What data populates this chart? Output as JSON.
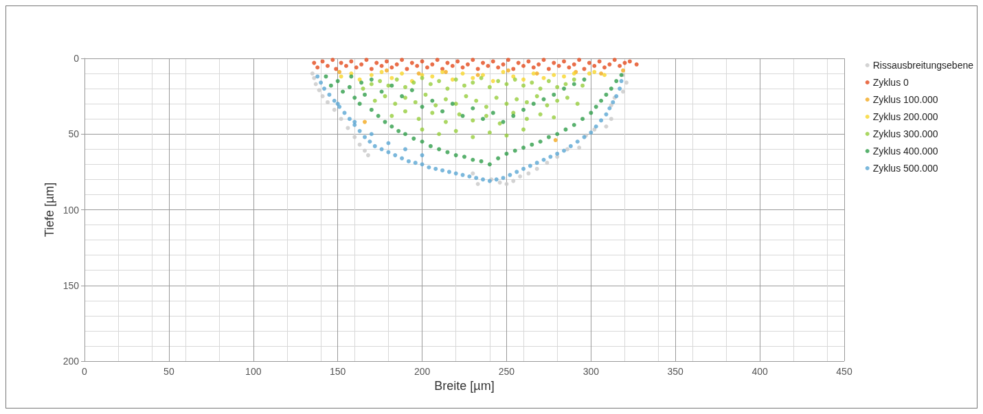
{
  "chart_data": {
    "type": "scatter",
    "xlabel": "Breite [µm]",
    "ylabel": "Tiefe [µm]",
    "xlim": [
      0,
      450
    ],
    "xticks": [
      0,
      50,
      100,
      150,
      200,
      250,
      300,
      350,
      400,
      450
    ],
    "ylim": [
      200,
      0
    ],
    "yticks": [
      0,
      50,
      100,
      150,
      200
    ],
    "grid": true,
    "legend": "top right",
    "marker": "circle",
    "series": [
      {
        "name": "Rissausbreitungsebene",
        "color": "#c8c8c8",
        "x": [
          135,
          136,
          137,
          139,
          141,
          144,
          148,
          152,
          156,
          160,
          163,
          166,
          168,
          230,
          233,
          241,
          246,
          250,
          254,
          258,
          263,
          268,
          274,
          280,
          286,
          293,
          297,
          302,
          309,
          312,
          312,
          314,
          319,
          321,
          319
        ],
        "values": [
          10,
          13,
          17,
          21,
          25,
          29,
          34,
          40,
          46,
          52,
          57,
          61,
          64,
          76,
          83,
          80,
          82,
          83,
          81,
          78,
          76,
          73,
          69,
          65,
          60,
          59,
          51,
          47,
          45,
          40,
          31,
          26,
          22,
          16,
          11
        ]
      },
      {
        "name": "Zyklus 0",
        "color": "#e34a1b",
        "x": [
          136,
          138,
          141,
          144,
          147,
          149,
          152,
          155,
          158,
          161,
          164,
          167,
          170,
          173,
          176,
          179,
          182,
          185,
          188,
          191,
          194,
          197,
          200,
          203,
          206,
          209,
          212,
          215,
          218,
          221,
          224,
          227,
          230,
          233,
          236,
          239,
          242,
          245,
          248,
          251,
          254,
          257,
          260,
          263,
          266,
          269,
          272,
          275,
          278,
          281,
          284,
          287,
          290,
          293,
          296,
          299,
          302,
          305,
          308,
          311,
          314,
          317,
          320,
          323,
          327
        ],
        "values": [
          3,
          6,
          2,
          5,
          1,
          7,
          3,
          5,
          2,
          6,
          4,
          1,
          7,
          3,
          5,
          2,
          6,
          4,
          1,
          7,
          3,
          5,
          2,
          6,
          4,
          1,
          7,
          3,
          5,
          2,
          6,
          4,
          1,
          7,
          3,
          5,
          2,
          6,
          4,
          1,
          7,
          3,
          5,
          2,
          6,
          4,
          1,
          7,
          3,
          5,
          2,
          6,
          4,
          1,
          7,
          3,
          5,
          2,
          6,
          4,
          1,
          5,
          3,
          2,
          4
        ]
      },
      {
        "name": "Zyklus 100.000",
        "color": "#f2a91e",
        "x": [
          151,
          166,
          179,
          198,
          214,
          233,
          251,
          268,
          279,
          291,
          306,
          319
        ],
        "values": [
          9,
          42,
          8,
          10,
          9,
          11,
          8,
          10,
          54,
          9,
          10,
          8
        ]
      },
      {
        "name": "Zyklus 200.000",
        "color": "#f7d62a",
        "x": [
          152,
          158,
          163,
          170,
          176,
          182,
          188,
          194,
          200,
          206,
          212,
          218,
          224,
          230,
          236,
          242,
          248,
          254,
          260,
          266,
          272,
          278,
          284,
          290,
          299,
          302,
          308
        ],
        "values": [
          12,
          10,
          14,
          11,
          9,
          13,
          10,
          15,
          11,
          12,
          9,
          14,
          10,
          13,
          11,
          15,
          9,
          12,
          14,
          10,
          13,
          11,
          12,
          10,
          10,
          9,
          11
        ]
      },
      {
        "name": "Zyklus 300.000",
        "color": "#96cd3c",
        "x": [
          165,
          170,
          175,
          180,
          185,
          190,
          195,
          200,
          205,
          210,
          215,
          220,
          225,
          230,
          235,
          240,
          245,
          250,
          255,
          260,
          265,
          270,
          275,
          280,
          285,
          290,
          295,
          172,
          178,
          184,
          190,
          196,
          202,
          208,
          214,
          220,
          226,
          232,
          238,
          244,
          250,
          256,
          262,
          268,
          274,
          280,
          286,
          292,
          182,
          190,
          198,
          206,
          214,
          222,
          230,
          238,
          246,
          254,
          262,
          270,
          278,
          200,
          210,
          220,
          230,
          240,
          250,
          260
        ],
        "values": [
          20,
          17,
          15,
          18,
          14,
          19,
          16,
          13,
          17,
          15,
          20,
          14,
          18,
          16,
          13,
          19,
          15,
          17,
          14,
          18,
          16,
          20,
          15,
          19,
          17,
          14,
          18,
          28,
          25,
          30,
          26,
          29,
          24,
          31,
          27,
          30,
          25,
          28,
          32,
          26,
          30,
          27,
          29,
          25,
          31,
          28,
          26,
          30,
          38,
          35,
          40,
          36,
          42,
          37,
          41,
          38,
          43,
          36,
          40,
          37,
          39,
          47,
          50,
          48,
          52,
          49,
          51,
          47
        ]
      },
      {
        "name": "Zyklus 400.000",
        "color": "#2f9e4a",
        "x": [
          143,
          146,
          150,
          153,
          157,
          160,
          163,
          166,
          170,
          174,
          178,
          182,
          186,
          190,
          195,
          200,
          205,
          210,
          215,
          220,
          225,
          230,
          235,
          240,
          245,
          250,
          255,
          260,
          265,
          270,
          275,
          280,
          285,
          290,
          295,
          300,
          303,
          306,
          309,
          312,
          315,
          318,
          158,
          164,
          170,
          176,
          182,
          188,
          194,
          200,
          206,
          212,
          218,
          224,
          230,
          236,
          242,
          248,
          254,
          260,
          266,
          272,
          278,
          284,
          290,
          296
        ],
        "values": [
          12,
          18,
          15,
          22,
          19,
          26,
          30,
          24,
          34,
          38,
          42,
          45,
          48,
          50,
          53,
          55,
          58,
          60,
          62,
          64,
          65,
          67,
          68,
          70,
          66,
          63,
          61,
          59,
          57,
          55,
          52,
          50,
          47,
          44,
          40,
          36,
          32,
          28,
          24,
          20,
          15,
          11,
          12,
          16,
          14,
          22,
          18,
          25,
          21,
          32,
          28,
          35,
          30,
          38,
          33,
          40,
          36,
          42,
          38,
          34,
          30,
          27,
          24,
          20,
          17,
          14
        ]
      },
      {
        "name": "Zyklus 500.000",
        "color": "#5aa6d3",
        "x": [
          138,
          140,
          142,
          145,
          148,
          151,
          154,
          157,
          160,
          163,
          166,
          169,
          172,
          176,
          180,
          184,
          188,
          192,
          196,
          200,
          204,
          208,
          212,
          216,
          220,
          224,
          228,
          232,
          236,
          240,
          244,
          248,
          252,
          256,
          260,
          264,
          268,
          272,
          276,
          280,
          284,
          288,
          292,
          296,
          300,
          303,
          306,
          309,
          311,
          313,
          315,
          317,
          318,
          150,
          160,
          170,
          180,
          190,
          200
        ],
        "values": [
          12,
          16,
          20,
          24,
          28,
          32,
          36,
          40,
          44,
          48,
          52,
          55,
          58,
          60,
          62,
          64,
          66,
          68,
          69,
          70,
          72,
          73,
          74,
          75,
          76,
          77,
          78,
          79,
          80,
          81,
          80,
          79,
          77,
          75,
          73,
          71,
          69,
          67,
          65,
          63,
          61,
          58,
          55,
          52,
          49,
          45,
          41,
          37,
          33,
          29,
          25,
          20,
          15,
          30,
          42,
          50,
          56,
          60,
          64
        ]
      }
    ]
  }
}
